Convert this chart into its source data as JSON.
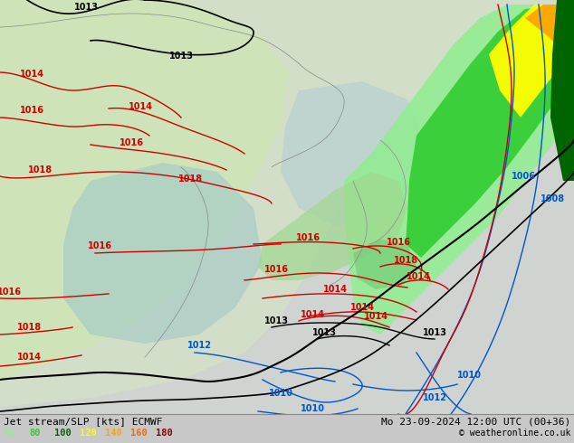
{
  "title_left": "Jet stream/SLP [kts] ECMWF",
  "title_right": "Mo 23-09-2024 12:00 UTC (00+36)",
  "copyright": "© weatheronline.co.uk",
  "legend_values": [
    "60",
    "80",
    "100",
    "120",
    "140",
    "160",
    "180"
  ],
  "legend_colors": [
    "#90ee90",
    "#32cd32",
    "#006400",
    "#ffff00",
    "#ffa500",
    "#ff6600",
    "#8b0000"
  ],
  "bg_color": "#c8c8c8",
  "map_bg": "#d8d8d8",
  "land_color": "#c8dcc8",
  "sea_color": "#b8d8d8",
  "jet_lgreen": "#90ee90",
  "jet_mgreen": "#32cd32",
  "jet_dgreen": "#006400",
  "jet_yellow": "#ffff00",
  "jet_orange": "#ffa500",
  "jet_red": "#cc0000",
  "jet_black": "#000000",
  "isobar_red": "#cc0000",
  "isobar_blue": "#0055cc",
  "isobar_black": "#000000",
  "isobar_gray": "#888888"
}
